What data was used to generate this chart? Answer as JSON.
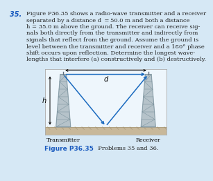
{
  "background_color": "#d6e8f5",
  "diagram_bg": "#eef6fc",
  "title": "Figure P36.35",
  "title_color": "#1a5bbf",
  "subtitle": "Problems 35 and 36.",
  "transmitter_label": "Transmitter",
  "receiver_label": "Receiver",
  "d_label": "d",
  "h_label": "h",
  "tower_fill": "#b0bec5",
  "tower_line": "#78909c",
  "ground_fill": "#c8b89a",
  "ground_line": "#b0a080",
  "arrow_color": "#1a6abf",
  "text_color": "#222222",
  "number_color": "#1a5bbf",
  "figure_number": "35.",
  "problem_lines": [
    "Figure P36.35 shows a radio-wave transmitter and a receiver",
    "separated by a distance d  = 50.0 m and both a distance",
    "h = 35.0 m above the ground. The receiver can receive sig-",
    "nals both directly from the transmitter and indirectly from",
    "signals that reflect from the ground. Assume the ground is",
    "level between the transmitter and receiver and a 180° phase",
    "shift occurs upon reflection. Determine the longest wave-",
    "lengths that interfere (a) constructively and (b) destructively."
  ]
}
